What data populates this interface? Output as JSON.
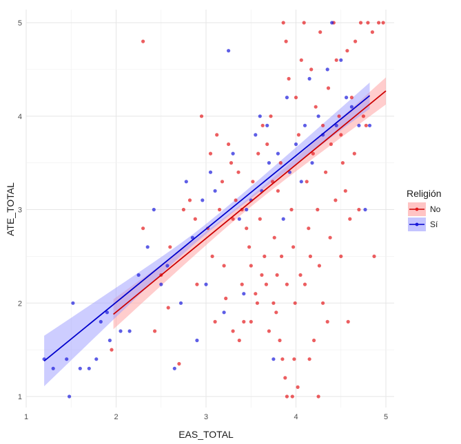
{
  "chart_data": {
    "type": "scatter",
    "xlabel": "EAS_TOTAL",
    "ylabel": "ATE_TOTAL",
    "xlim": [
      1,
      5
    ],
    "ylim": [
      1,
      5
    ],
    "xticks": [
      "1",
      "2",
      "3",
      "4",
      "5"
    ],
    "yticks": [
      "1",
      "2",
      "3",
      "4",
      "5"
    ],
    "grid": true,
    "legend": {
      "title": "Religión",
      "position": "right",
      "entries": [
        "No",
        "Sí"
      ]
    },
    "series": [
      {
        "name": "No",
        "color": "#e41a1c",
        "fit": {
          "x": [
            1.97,
            5.0
          ],
          "y": [
            1.88,
            4.27
          ],
          "ci_lower": [
            1.72,
            4.13
          ],
          "ci_upper": [
            2.04,
            4.42
          ]
        },
        "points": [
          [
            1.95,
            1.5
          ],
          [
            2.3,
            4.8
          ],
          [
            2.43,
            1.7
          ],
          [
            2.7,
            1.35
          ],
          [
            2.58,
            1.95
          ],
          [
            2.9,
            2.2
          ],
          [
            3.1,
            1.8
          ],
          [
            3.22,
            2.05
          ],
          [
            3.3,
            1.7
          ],
          [
            3.37,
            1.6
          ],
          [
            3.42,
            1.8
          ],
          [
            3.5,
            1.8
          ],
          [
            3.55,
            2.1
          ],
          [
            3.62,
            2.3
          ],
          [
            3.65,
            2.5
          ],
          [
            3.7,
            1.7
          ],
          [
            3.75,
            2.0
          ],
          [
            3.78,
            1.9
          ],
          [
            3.82,
            1.6
          ],
          [
            3.85,
            1.4
          ],
          [
            3.88,
            1.2
          ],
          [
            3.9,
            1.0
          ],
          [
            3.96,
            1.0
          ],
          [
            3.98,
            1.4
          ],
          [
            4.02,
            1.1
          ],
          [
            4.1,
            2.2
          ],
          [
            4.15,
            1.4
          ],
          [
            4.2,
            1.6
          ],
          [
            4.25,
            1.0
          ],
          [
            4.3,
            2.0
          ],
          [
            4.35,
            1.8
          ],
          [
            4.5,
            2.5
          ],
          [
            4.58,
            1.8
          ],
          [
            4.87,
            2.5
          ],
          [
            4.78,
            3.9
          ],
          [
            4.7,
            3.0
          ],
          [
            4.6,
            2.9
          ],
          [
            4.55,
            3.2
          ],
          [
            2.95,
            4.0
          ],
          [
            3.05,
            3.6
          ],
          [
            3.12,
            3.8
          ],
          [
            3.18,
            3.3
          ],
          [
            3.25,
            3.7
          ],
          [
            3.28,
            3.5
          ],
          [
            3.33,
            3.1
          ],
          [
            3.36,
            3.4
          ],
          [
            3.4,
            3.0
          ],
          [
            3.45,
            2.8
          ],
          [
            3.48,
            2.6
          ],
          [
            3.52,
            3.3
          ],
          [
            3.58,
            3.6
          ],
          [
            3.6,
            2.9
          ],
          [
            3.63,
            3.9
          ],
          [
            3.68,
            3.7
          ],
          [
            3.72,
            4.0
          ],
          [
            3.74,
            3.3
          ],
          [
            3.76,
            2.7
          ],
          [
            3.8,
            3.2
          ],
          [
            3.83,
            3.5
          ],
          [
            3.86,
            5.0
          ],
          [
            3.89,
            4.8
          ],
          [
            3.92,
            4.4
          ],
          [
            3.95,
            3.0
          ],
          [
            3.97,
            2.6
          ],
          [
            4.0,
            4.2
          ],
          [
            4.03,
            3.8
          ],
          [
            4.06,
            4.6
          ],
          [
            4.09,
            5.0
          ],
          [
            4.12,
            3.3
          ],
          [
            4.14,
            2.8
          ],
          [
            4.17,
            4.5
          ],
          [
            4.19,
            3.6
          ],
          [
            4.22,
            4.1
          ],
          [
            4.24,
            3.0
          ],
          [
            4.27,
            4.9
          ],
          [
            4.3,
            3.9
          ],
          [
            4.33,
            3.4
          ],
          [
            4.36,
            4.3
          ],
          [
            4.39,
            3.7
          ],
          [
            4.42,
            5.0
          ],
          [
            4.45,
            4.6
          ],
          [
            4.48,
            4.0
          ],
          [
            4.52,
            3.5
          ],
          [
            4.57,
            4.7
          ],
          [
            4.62,
            4.2
          ],
          [
            4.66,
            4.8
          ],
          [
            4.72,
            5.0
          ],
          [
            4.8,
            5.0
          ],
          [
            4.85,
            4.9
          ],
          [
            4.92,
            5.0
          ],
          [
            4.97,
            5.0
          ],
          [
            3.02,
            2.8
          ],
          [
            3.07,
            2.5
          ],
          [
            3.15,
            3.0
          ],
          [
            3.2,
            2.4
          ],
          [
            3.3,
            2.9
          ],
          [
            3.4,
            2.2
          ],
          [
            3.5,
            2.4
          ],
          [
            3.57,
            2.0
          ],
          [
            3.67,
            2.2
          ],
          [
            3.79,
            2.3
          ],
          [
            3.84,
            2.5
          ],
          [
            3.9,
            2.2
          ],
          [
            3.99,
            2.0
          ],
          [
            4.05,
            2.3
          ],
          [
            4.16,
            2.5
          ],
          [
            4.26,
            2.4
          ],
          [
            4.38,
            2.7
          ],
          [
            2.75,
            3.0
          ],
          [
            2.82,
            3.1
          ],
          [
            2.88,
            2.9
          ],
          [
            2.6,
            2.6
          ],
          [
            2.5,
            2.3
          ],
          [
            2.3,
            2.8
          ],
          [
            4.44,
            3.1
          ],
          [
            4.5,
            3.8
          ],
          [
            4.65,
            3.6
          ],
          [
            4.75,
            4.0
          ]
        ]
      },
      {
        "name": "Sí",
        "color": "#1a1adb",
        "fit": {
          "x": [
            1.2,
            4.82
          ],
          "y": [
            1.38,
            4.22
          ],
          "ci_lower": [
            1.11,
            4.08
          ],
          "ci_upper": [
            1.65,
            4.36
          ]
        },
        "points": [
          [
            1.2,
            1.4
          ],
          [
            1.3,
            1.3
          ],
          [
            1.45,
            1.4
          ],
          [
            1.48,
            1.0
          ],
          [
            1.52,
            2.0
          ],
          [
            1.6,
            1.3
          ],
          [
            1.7,
            1.3
          ],
          [
            1.78,
            1.4
          ],
          [
            1.83,
            1.8
          ],
          [
            1.9,
            1.9
          ],
          [
            1.93,
            1.6
          ],
          [
            2.05,
            1.7
          ],
          [
            2.15,
            1.7
          ],
          [
            2.25,
            2.3
          ],
          [
            2.35,
            2.6
          ],
          [
            2.42,
            3.0
          ],
          [
            2.5,
            2.2
          ],
          [
            2.57,
            2.4
          ],
          [
            2.65,
            1.3
          ],
          [
            2.72,
            2.0
          ],
          [
            2.78,
            3.3
          ],
          [
            2.85,
            2.7
          ],
          [
            2.9,
            1.6
          ],
          [
            2.96,
            3.1
          ],
          [
            3.0,
            2.2
          ],
          [
            3.05,
            3.4
          ],
          [
            3.1,
            3.2
          ],
          [
            3.2,
            1.9
          ],
          [
            3.25,
            4.7
          ],
          [
            3.3,
            3.6
          ],
          [
            3.37,
            2.9
          ],
          [
            3.42,
            2.1
          ],
          [
            3.5,
            3.1
          ],
          [
            3.55,
            3.8
          ],
          [
            3.62,
            3.2
          ],
          [
            3.7,
            3.5
          ],
          [
            3.75,
            1.4
          ],
          [
            3.8,
            3.6
          ],
          [
            3.86,
            2.9
          ],
          [
            3.93,
            3.4
          ],
          [
            4.0,
            3.7
          ],
          [
            4.06,
            3.3
          ],
          [
            4.1,
            3.9
          ],
          [
            4.18,
            3.5
          ],
          [
            4.25,
            4.0
          ],
          [
            4.3,
            3.8
          ],
          [
            4.35,
            4.5
          ],
          [
            4.4,
            5.0
          ],
          [
            4.45,
            3.9
          ],
          [
            4.5,
            4.6
          ],
          [
            4.56,
            4.2
          ],
          [
            4.62,
            4.1
          ],
          [
            4.7,
            3.9
          ],
          [
            4.77,
            3.0
          ],
          [
            4.82,
            3.9
          ],
          [
            3.6,
            4.0
          ],
          [
            3.68,
            3.9
          ],
          [
            3.9,
            4.2
          ],
          [
            4.15,
            4.4
          ],
          [
            3.45,
            3.0
          ]
        ]
      }
    ]
  }
}
